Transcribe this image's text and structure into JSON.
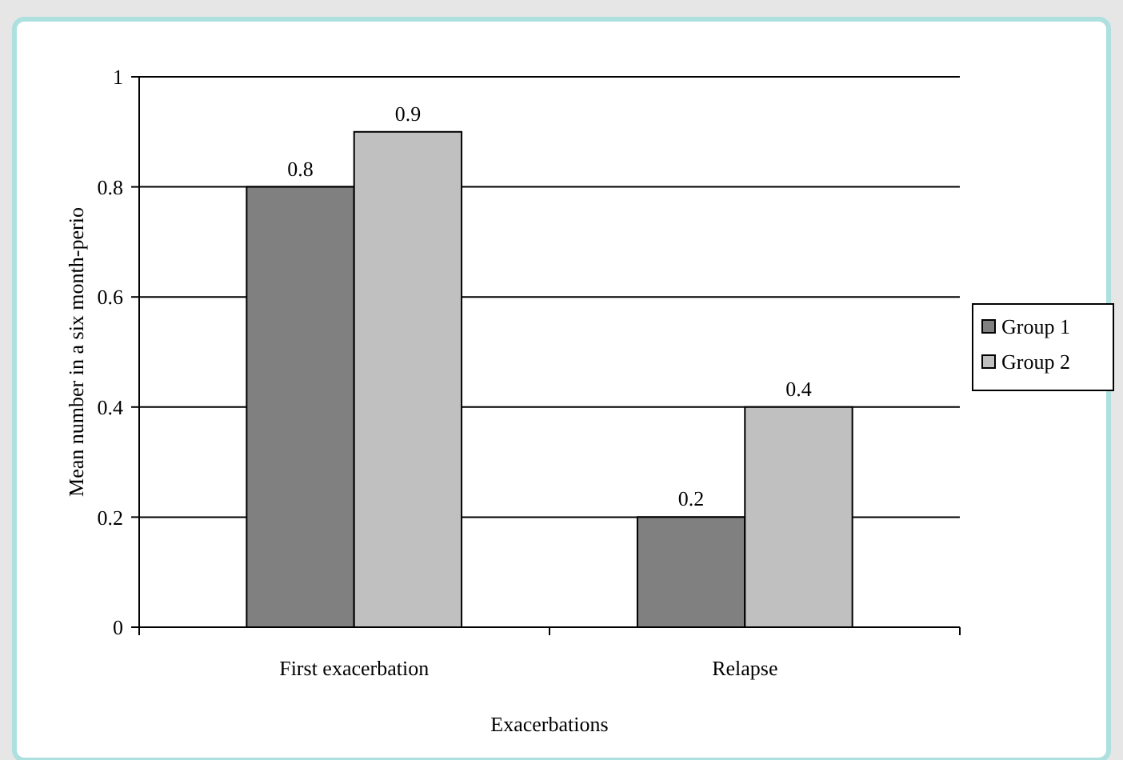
{
  "chart_data": {
    "type": "bar",
    "xlabel": "Exacerbations",
    "ylabel": "Mean number in a six month-perio",
    "categories": [
      "First exacerbation",
      "Relapse"
    ],
    "series": [
      {
        "name": "Group 1",
        "color": "#808080",
        "values": [
          0.8,
          0.2
        ]
      },
      {
        "name": "Group 2",
        "color": "#c0c0c0",
        "values": [
          0.9,
          0.4
        ]
      }
    ],
    "ylim": [
      0,
      1
    ],
    "yticks": [
      0,
      {
        "value": 0.2,
        "label": "0.2"
      },
      {
        "value": 0.4,
        "label": "0.4"
      },
      {
        "value": 0.6,
        "label": "0.6"
      },
      {
        "value": 0.8,
        "label": "0.8"
      },
      1
    ],
    "grid": "y",
    "legend": "right",
    "data_labels": true
  }
}
